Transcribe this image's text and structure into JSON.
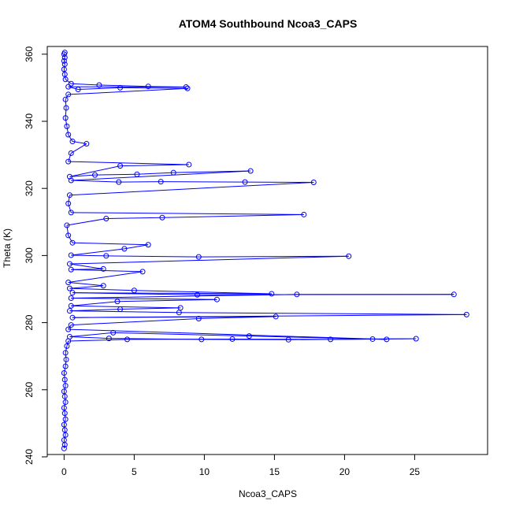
{
  "chart_data": {
    "type": "scatter",
    "title": "ATOM4 Southbound Ncoa3_CAPS",
    "xlabel": "Ncoa3_CAPS",
    "ylabel": "Theta (K)",
    "xlim": [
      -1.2,
      30.2
    ],
    "ylim": [
      240.7,
      362.3
    ],
    "x_ticks": [
      0,
      5,
      10,
      15,
      20,
      25
    ],
    "y_ticks": [
      240,
      260,
      280,
      300,
      320,
      340,
      360
    ],
    "grid": false,
    "legend": "none",
    "marker": "open-circle",
    "connected": true,
    "series": [
      {
        "color": "#0000ff",
        "points": [
          [
            0.0,
            242.5
          ],
          [
            0.05,
            243.6
          ],
          [
            0.0,
            245.0
          ],
          [
            0.1,
            246.5
          ],
          [
            0.05,
            248.0
          ],
          [
            0.0,
            249.6
          ],
          [
            0.1,
            251.2
          ],
          [
            0.05,
            253.0
          ],
          [
            0.0,
            254.6
          ],
          [
            0.1,
            256.3
          ],
          [
            0.05,
            258.0
          ],
          [
            0.0,
            259.5
          ],
          [
            0.1,
            261.2
          ],
          [
            0.05,
            263.0
          ],
          [
            0.0,
            265.0
          ],
          [
            0.1,
            267.0
          ],
          [
            0.15,
            269.0
          ],
          [
            0.1,
            271.0
          ],
          [
            0.2,
            273.0
          ],
          [
            0.3,
            274.5
          ],
          [
            4.5,
            275.0
          ],
          [
            12.0,
            275.1
          ],
          [
            19.0,
            275.0
          ],
          [
            25.1,
            275.2
          ],
          [
            22.0,
            275.1
          ],
          [
            16.0,
            274.9
          ],
          [
            9.8,
            275.0
          ],
          [
            3.2,
            275.3
          ],
          [
            0.4,
            275.8
          ],
          [
            3.5,
            277.0
          ],
          [
            13.2,
            276.0
          ],
          [
            23.0,
            275.0
          ],
          [
            0.3,
            278.0
          ],
          [
            0.5,
            279.3
          ],
          [
            9.6,
            281.2
          ],
          [
            15.1,
            281.8
          ],
          [
            0.6,
            281.5
          ],
          [
            28.7,
            282.4
          ],
          [
            8.2,
            283.0
          ],
          [
            0.4,
            283.5
          ],
          [
            4.0,
            284.0
          ],
          [
            8.3,
            284.4
          ],
          [
            0.5,
            285.0
          ],
          [
            3.8,
            286.3
          ],
          [
            10.9,
            286.9
          ],
          [
            0.5,
            287.3
          ],
          [
            16.6,
            288.4
          ],
          [
            27.8,
            288.4
          ],
          [
            9.5,
            288.3
          ],
          [
            0.6,
            288.9
          ],
          [
            14.8,
            288.6
          ],
          [
            5.0,
            289.6
          ],
          [
            0.4,
            290.2
          ],
          [
            2.8,
            291.0
          ],
          [
            0.3,
            292.0
          ],
          [
            5.6,
            295.2
          ],
          [
            0.5,
            295.8
          ],
          [
            2.8,
            296.0
          ],
          [
            0.4,
            297.5
          ],
          [
            20.3,
            299.8
          ],
          [
            9.6,
            299.6
          ],
          [
            3.0,
            299.9
          ],
          [
            0.5,
            300.1
          ],
          [
            4.3,
            302.0
          ],
          [
            6.0,
            303.2
          ],
          [
            0.6,
            303.8
          ],
          [
            0.3,
            306.0
          ],
          [
            0.2,
            309.0
          ],
          [
            3.0,
            311.0
          ],
          [
            7.0,
            311.3
          ],
          [
            17.1,
            312.2
          ],
          [
            0.5,
            312.8
          ],
          [
            0.3,
            315.5
          ],
          [
            0.4,
            318.0
          ],
          [
            17.8,
            321.8
          ],
          [
            12.9,
            321.9
          ],
          [
            6.9,
            322.0
          ],
          [
            3.9,
            321.9
          ],
          [
            0.5,
            322.4
          ],
          [
            13.3,
            325.2
          ],
          [
            7.8,
            324.7
          ],
          [
            5.2,
            324.2
          ],
          [
            2.2,
            324.0
          ],
          [
            0.4,
            323.5
          ],
          [
            4.0,
            326.7
          ],
          [
            8.9,
            327.1
          ],
          [
            0.3,
            328.0
          ],
          [
            0.5,
            330.5
          ],
          [
            1.6,
            333.3
          ],
          [
            0.6,
            334.0
          ],
          [
            0.3,
            336.0
          ],
          [
            0.2,
            338.5
          ],
          [
            0.1,
            341.0
          ],
          [
            0.15,
            344.0
          ],
          [
            0.1,
            346.5
          ],
          [
            0.3,
            348.0
          ],
          [
            8.8,
            349.8
          ],
          [
            4.0,
            350.0
          ],
          [
            1.0,
            349.5
          ],
          [
            0.3,
            350.3
          ],
          [
            8.7,
            350.2
          ],
          [
            6.0,
            350.4
          ],
          [
            2.5,
            350.8
          ],
          [
            0.5,
            351.2
          ],
          [
            0.1,
            352.5
          ],
          [
            0.05,
            354.0
          ],
          [
            0.0,
            355.5
          ],
          [
            0.05,
            357.0
          ],
          [
            0.0,
            358.0
          ],
          [
            0.05,
            359.0
          ],
          [
            0.0,
            360.0
          ],
          [
            0.05,
            360.5
          ]
        ]
      }
    ]
  }
}
